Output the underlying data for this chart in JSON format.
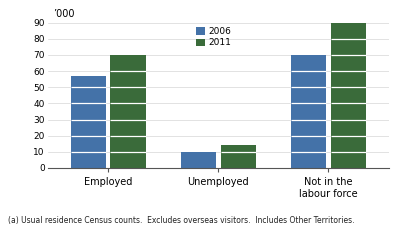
{
  "categories": [
    "Employed",
    "Unemployed",
    "Not in the\nlabour force"
  ],
  "values_2006": [
    57,
    10,
    70
  ],
  "values_2011": [
    70,
    14,
    90
  ],
  "color_2006": "#4472a8",
  "color_2011": "#3a6b3a",
  "ylim": [
    0,
    90
  ],
  "yticks": [
    0,
    10,
    20,
    30,
    40,
    50,
    60,
    70,
    80,
    90
  ],
  "ylabel_top": "’000",
  "legend_labels": [
    "2006",
    "2011"
  ],
  "footnote": "(a) Usual residence Census counts.  Excludes overseas visitors.  Includes Other Territories.",
  "bar_width": 0.32,
  "bar_gap": 0.04
}
